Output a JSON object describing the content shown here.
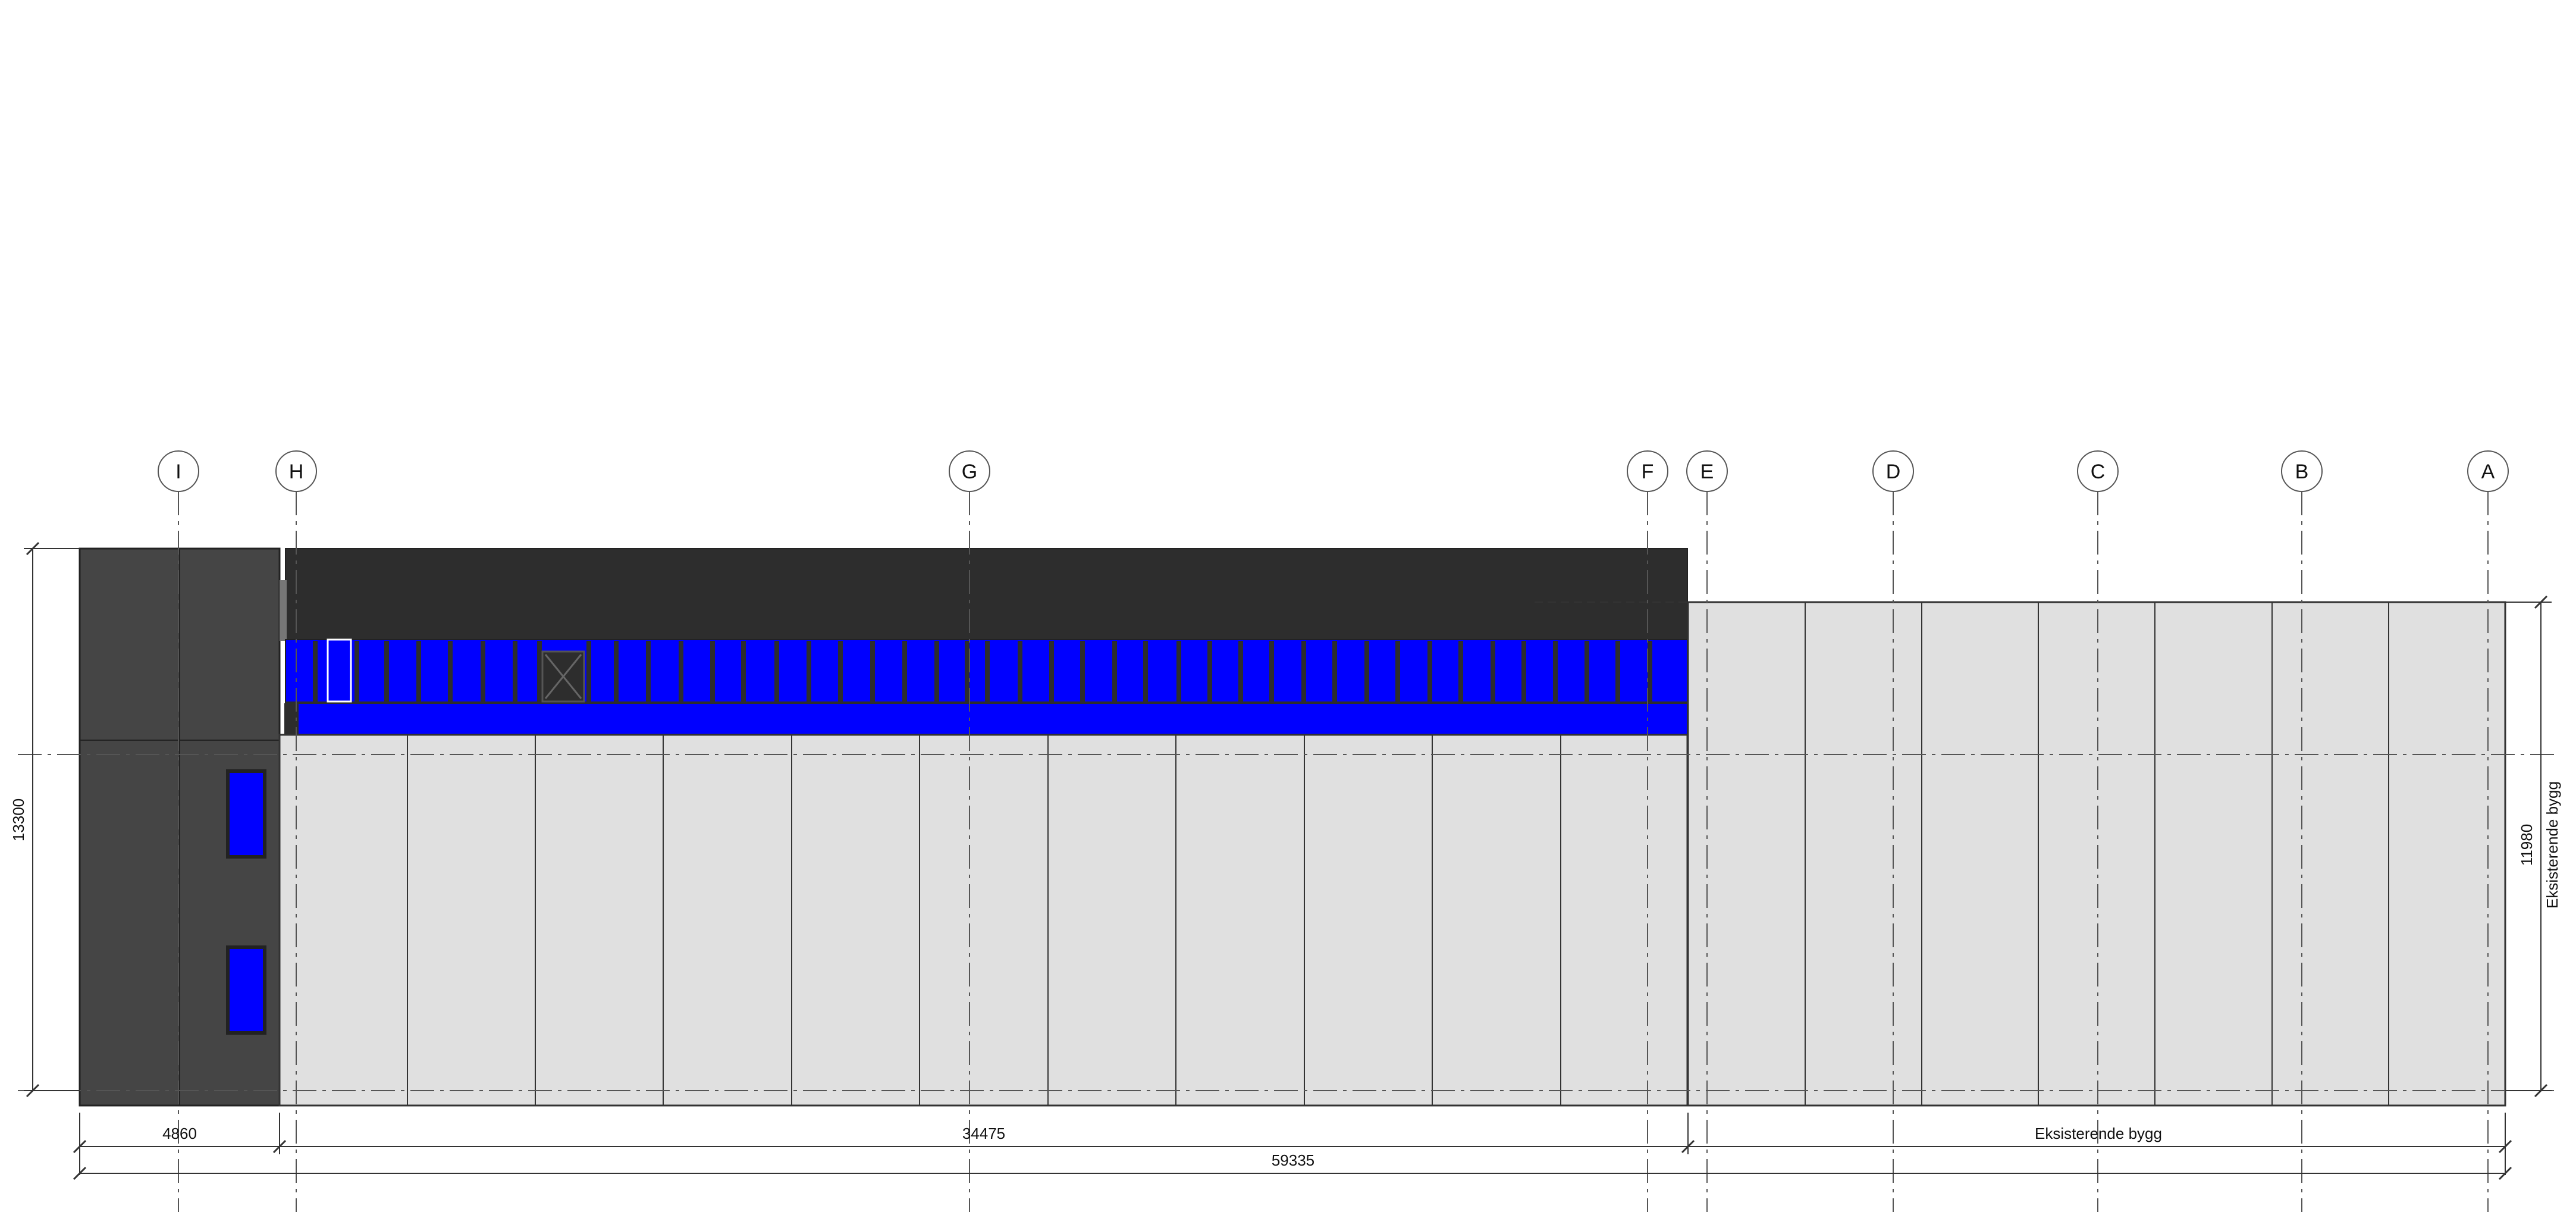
{
  "grid_labels": [
    "I",
    "H",
    "G",
    "F",
    "E",
    "D",
    "C",
    "B",
    "A"
  ],
  "dimensions": {
    "overall_height": "13300",
    "existing_height": "11980",
    "existing_building_side": "Eksisterende bygg",
    "bay_left": "4860",
    "bay_main": "34475",
    "existing_building_bottom": "Eksisterende bygg",
    "total_length": "59335"
  },
  "colors": {
    "dark_cladding": "#454545",
    "roof_band": "#2d2d2d",
    "glazing": "#0000ff",
    "light_cladding": "#e0e0e0",
    "existing_building": "#e0e0e0",
    "lines": "#333333"
  }
}
